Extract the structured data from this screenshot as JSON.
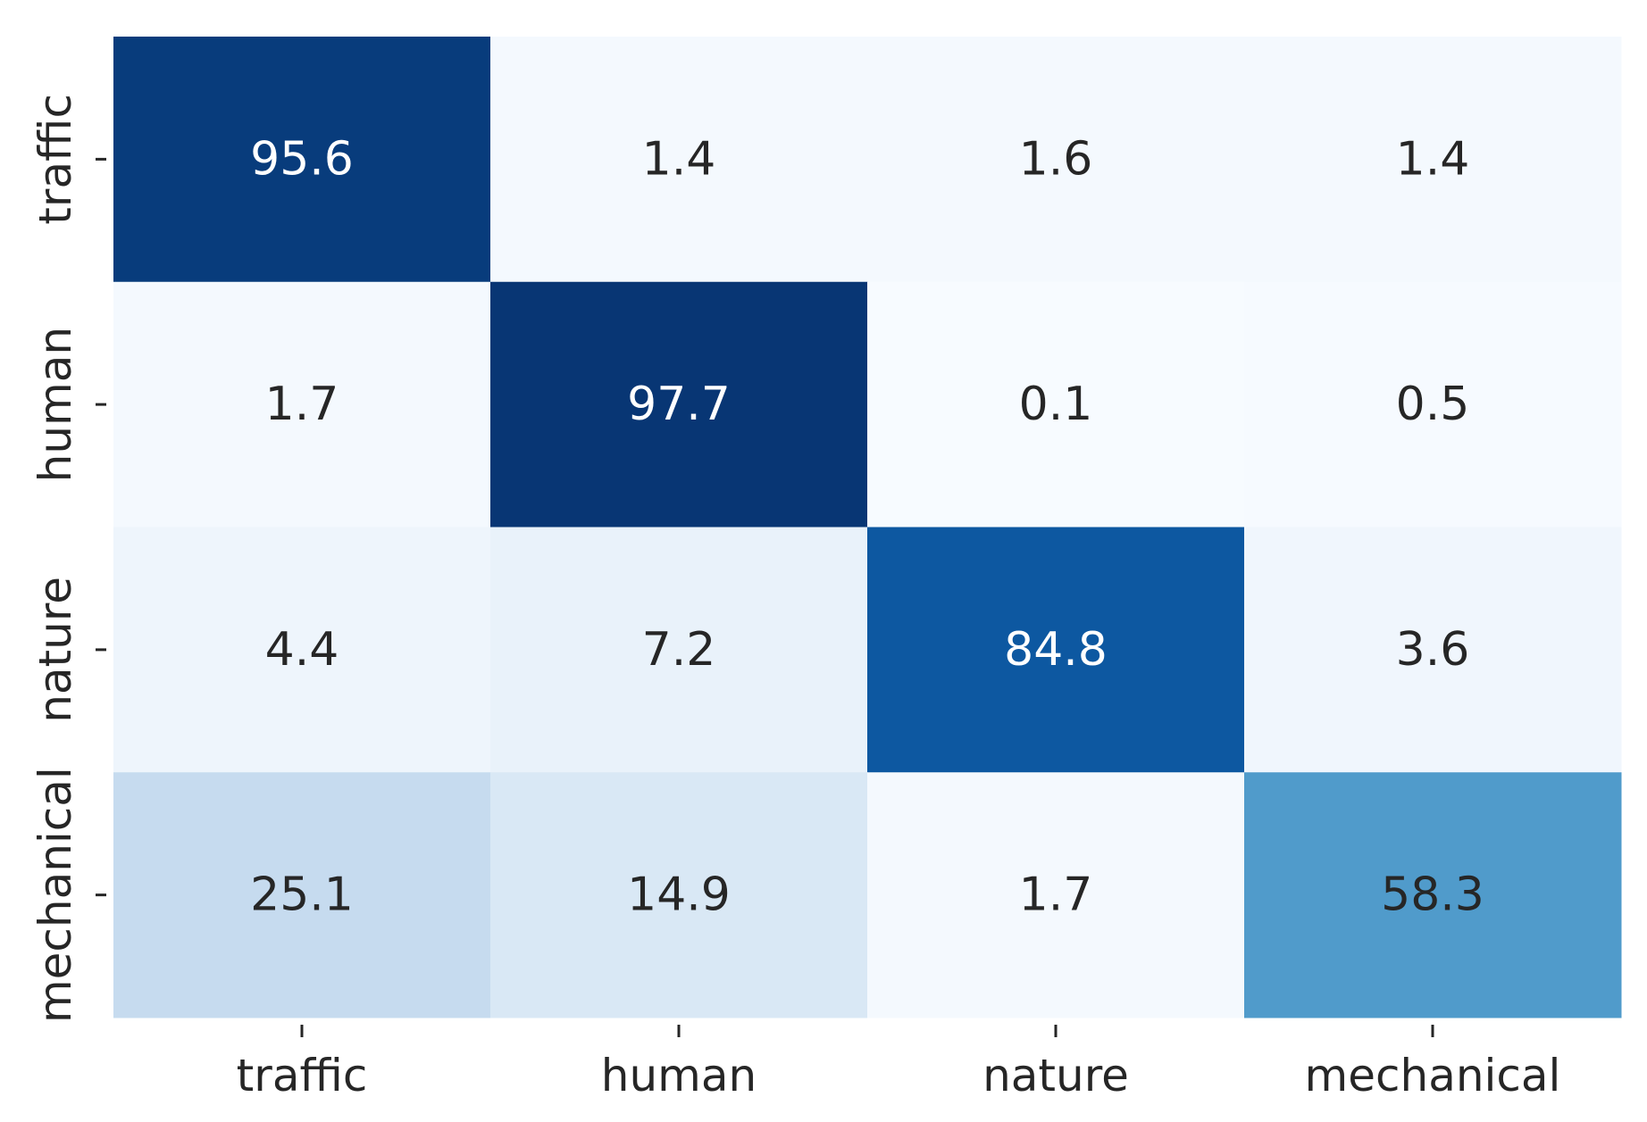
{
  "chart_data": {
    "type": "heatmap",
    "title": "",
    "xlabel": "",
    "ylabel": "",
    "x_categories": [
      "traffic",
      "human",
      "nature",
      "mechanical"
    ],
    "y_categories": [
      "traffic",
      "human",
      "nature",
      "mechanical"
    ],
    "values": [
      [
        95.6,
        1.4,
        1.6,
        1.4
      ],
      [
        1.7,
        97.7,
        0.1,
        0.5
      ],
      [
        4.4,
        7.2,
        84.8,
        3.6
      ],
      [
        25.1,
        14.9,
        1.7,
        58.3
      ]
    ],
    "value_labels": [
      [
        "95.6",
        "1.4",
        "1.6",
        "1.4"
      ],
      [
        "1.7",
        "97.7",
        "0.1",
        "0.5"
      ],
      [
        "4.4",
        "7.2",
        "84.8",
        "3.6"
      ],
      [
        "25.1",
        "14.9",
        "1.7",
        "58.3"
      ]
    ],
    "colormap": "Blues",
    "vmin": 0,
    "vmax": 100,
    "colorbar": false
  }
}
